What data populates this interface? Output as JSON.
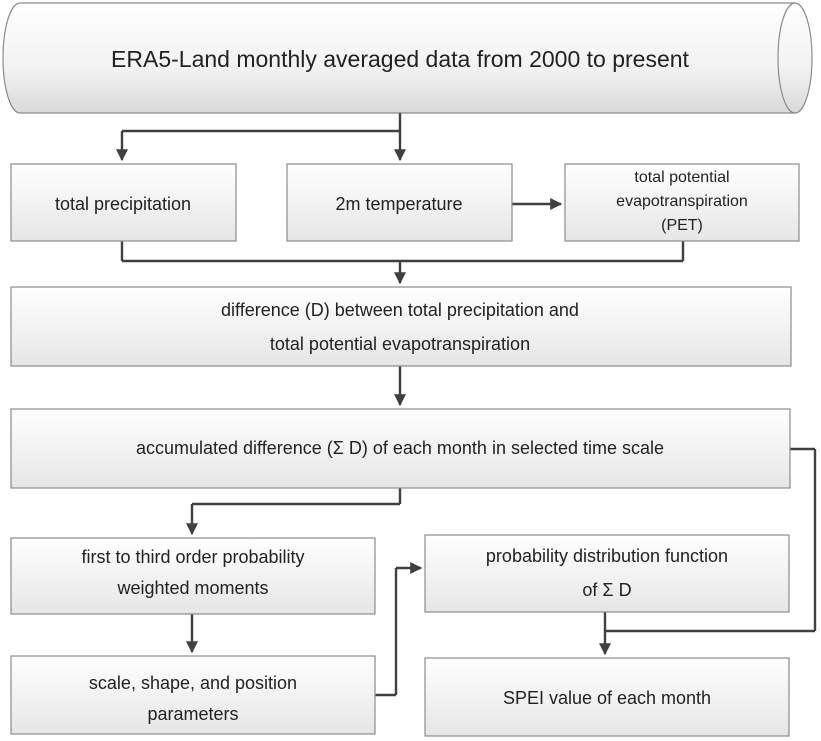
{
  "diagram": {
    "source_db": "ERA5-Land monthly averaged data from 2000 to present",
    "precip": "total precipitation",
    "temp": "2m temperature",
    "pet": [
      "total potential",
      "evapotranspiration",
      "(PET)"
    ],
    "diff": [
      "difference (D) between total precipitation and",
      "total potential evapotranspiration"
    ],
    "accum": "accumulated  difference (Σ D) of each month in selected time scale",
    "pwm": [
      "first to third order probability",
      "weighted moments"
    ],
    "params": [
      "scale, shape, and position",
      "parameters"
    ],
    "pdf": [
      "probability distribution function",
      "of Σ D"
    ],
    "spei": "SPEI value of each month"
  }
}
